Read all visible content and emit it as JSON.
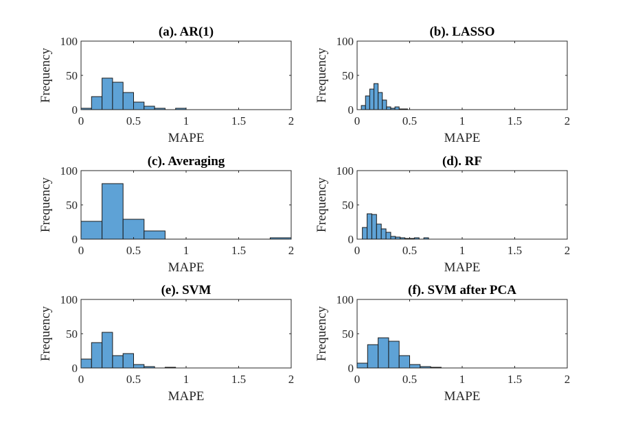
{
  "figure": {
    "colors": {
      "bar_fill": "#5ea2d6",
      "bar_edge": "#1a1a1a",
      "axis": "#262626",
      "background": "#ffffff"
    }
  },
  "chart_data": [
    {
      "type": "bar",
      "title": "(a). AR(1)",
      "xlabel": "MAPE",
      "ylabel": "Frequency",
      "xlim": [
        0,
        2
      ],
      "ylim": [
        0,
        100
      ],
      "xticks": [
        "0",
        "0.5",
        "1",
        "1.5",
        "2"
      ],
      "yticks": [
        "0",
        "50",
        "100"
      ],
      "bin_width": 0.1,
      "bins": [
        {
          "start": 0.0,
          "value": 2
        },
        {
          "start": 0.1,
          "value": 19
        },
        {
          "start": 0.2,
          "value": 46
        },
        {
          "start": 0.3,
          "value": 40
        },
        {
          "start": 0.4,
          "value": 25
        },
        {
          "start": 0.5,
          "value": 11
        },
        {
          "start": 0.6,
          "value": 5
        },
        {
          "start": 0.7,
          "value": 2
        },
        {
          "start": 0.8,
          "value": 0
        },
        {
          "start": 0.9,
          "value": 2
        }
      ]
    },
    {
      "type": "bar",
      "title": "(b). LASSO",
      "xlabel": "MAPE",
      "ylabel": "Frequency",
      "xlim": [
        0,
        2
      ],
      "ylim": [
        0,
        100
      ],
      "xticks": [
        "0",
        "0.5",
        "1",
        "1.5",
        "2"
      ],
      "yticks": [
        "0",
        "50",
        "100"
      ],
      "bin_width": 0.04,
      "bins": [
        {
          "start": 0.04,
          "value": 6
        },
        {
          "start": 0.08,
          "value": 20
        },
        {
          "start": 0.12,
          "value": 30
        },
        {
          "start": 0.16,
          "value": 38
        },
        {
          "start": 0.2,
          "value": 25
        },
        {
          "start": 0.24,
          "value": 14
        },
        {
          "start": 0.28,
          "value": 4
        },
        {
          "start": 0.32,
          "value": 2
        },
        {
          "start": 0.36,
          "value": 4
        },
        {
          "start": 0.4,
          "value": 1
        },
        {
          "start": 0.44,
          "value": 1
        }
      ]
    },
    {
      "type": "bar",
      "title": "(c). Averaging",
      "xlabel": "MAPE",
      "ylabel": "Frequency",
      "xlim": [
        0,
        2
      ],
      "ylim": [
        0,
        100
      ],
      "xticks": [
        "0",
        "0.5",
        "1",
        "1.5",
        "2"
      ],
      "yticks": [
        "0",
        "50",
        "100"
      ],
      "bin_width": 0.2,
      "bins": [
        {
          "start": 0.0,
          "value": 26
        },
        {
          "start": 0.2,
          "value": 81
        },
        {
          "start": 0.4,
          "value": 29
        },
        {
          "start": 0.6,
          "value": 12
        },
        {
          "start": 0.8,
          "value": 0
        },
        {
          "start": 1.0,
          "value": 0
        },
        {
          "start": 1.2,
          "value": 0
        },
        {
          "start": 1.4,
          "value": 0
        },
        {
          "start": 1.6,
          "value": 0
        },
        {
          "start": 1.8,
          "value": 2
        }
      ]
    },
    {
      "type": "bar",
      "title": "(d). RF",
      "xlabel": "MAPE",
      "ylabel": "Frequency",
      "xlim": [
        0,
        2
      ],
      "ylim": [
        0,
        100
      ],
      "xticks": [
        "0",
        "0.5",
        "1",
        "1.5",
        "2"
      ],
      "yticks": [
        "0",
        "50",
        "100"
      ],
      "bin_width": 0.045,
      "bins": [
        {
          "start": 0.05,
          "value": 17
        },
        {
          "start": 0.095,
          "value": 37
        },
        {
          "start": 0.14,
          "value": 36
        },
        {
          "start": 0.185,
          "value": 22
        },
        {
          "start": 0.23,
          "value": 15
        },
        {
          "start": 0.275,
          "value": 10
        },
        {
          "start": 0.32,
          "value": 4
        },
        {
          "start": 0.365,
          "value": 3
        },
        {
          "start": 0.41,
          "value": 2
        },
        {
          "start": 0.455,
          "value": 1
        },
        {
          "start": 0.5,
          "value": 1
        },
        {
          "start": 0.545,
          "value": 2
        },
        {
          "start": 0.59,
          "value": 0
        },
        {
          "start": 0.635,
          "value": 2
        }
      ]
    },
    {
      "type": "bar",
      "title": "(e). SVM",
      "xlabel": "MAPE",
      "ylabel": "Frequency",
      "xlim": [
        0,
        2
      ],
      "ylim": [
        0,
        100
      ],
      "xticks": [
        "0",
        "0.5",
        "1",
        "1.5",
        "2"
      ],
      "yticks": [
        "0",
        "50",
        "100"
      ],
      "bin_width": 0.1,
      "bins": [
        {
          "start": 0.0,
          "value": 13
        },
        {
          "start": 0.1,
          "value": 37
        },
        {
          "start": 0.2,
          "value": 52
        },
        {
          "start": 0.3,
          "value": 18
        },
        {
          "start": 0.4,
          "value": 21
        },
        {
          "start": 0.5,
          "value": 5
        },
        {
          "start": 0.6,
          "value": 2
        },
        {
          "start": 0.7,
          "value": 0
        },
        {
          "start": 0.8,
          "value": 1
        }
      ]
    },
    {
      "type": "bar",
      "title": "(f). SVM after PCA",
      "xlabel": "MAPE",
      "ylabel": "Frequency",
      "xlim": [
        0,
        2
      ],
      "ylim": [
        0,
        100
      ],
      "xticks": [
        "0",
        "0.5",
        "1",
        "1.5",
        "2"
      ],
      "yticks": [
        "0",
        "50",
        "100"
      ],
      "bin_width": 0.1,
      "bins": [
        {
          "start": 0.0,
          "value": 7
        },
        {
          "start": 0.1,
          "value": 34
        },
        {
          "start": 0.2,
          "value": 44
        },
        {
          "start": 0.3,
          "value": 39
        },
        {
          "start": 0.4,
          "value": 18
        },
        {
          "start": 0.5,
          "value": 5
        },
        {
          "start": 0.6,
          "value": 2
        },
        {
          "start": 0.7,
          "value": 1
        }
      ]
    }
  ]
}
